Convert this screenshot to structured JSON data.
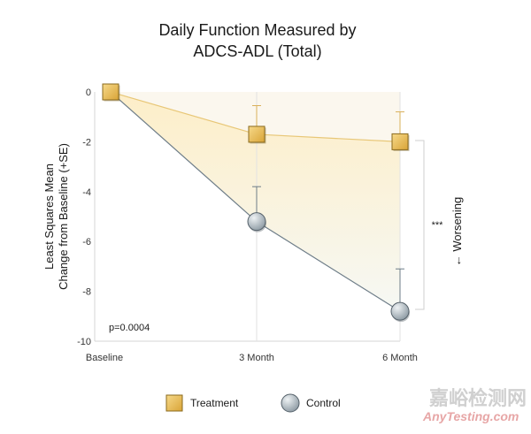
{
  "chart_data": {
    "type": "line",
    "title_lines": [
      "Daily Function Measured by",
      "ADCS-ADL (Total)"
    ],
    "categories": [
      "Baseline",
      "3 Month",
      "6 Month"
    ],
    "ylabel_lines": [
      "Least Squares Mean",
      "Change from Baseline (+SE)"
    ],
    "ylim": [
      -10,
      0
    ],
    "yticks": [
      0,
      -2,
      -4,
      -6,
      -8,
      -10
    ],
    "ytick_labels": [
      "0",
      "-2",
      "-4",
      "-6",
      "-8",
      "-10"
    ],
    "series": [
      {
        "name": "Treatment",
        "values": [
          0,
          -1.7,
          -2.0
        ],
        "se_upper": [
          0,
          -0.55,
          -0.8
        ],
        "color": "#f2c14e",
        "marker": "square"
      },
      {
        "name": "Control",
        "values": [
          0,
          -5.2,
          -8.8
        ],
        "se_upper": [
          0,
          -3.8,
          -7.1
        ],
        "color": "#7f8f9a",
        "marker": "circle"
      }
    ],
    "annotations": {
      "pvalue": "p=0.0004",
      "significance": "***",
      "direction": "← Worsening"
    },
    "fill_color": "#fff6dc",
    "grid": false
  },
  "watermark": {
    "cn": "嘉峪检测网",
    "en": "AnyTesting.com"
  }
}
